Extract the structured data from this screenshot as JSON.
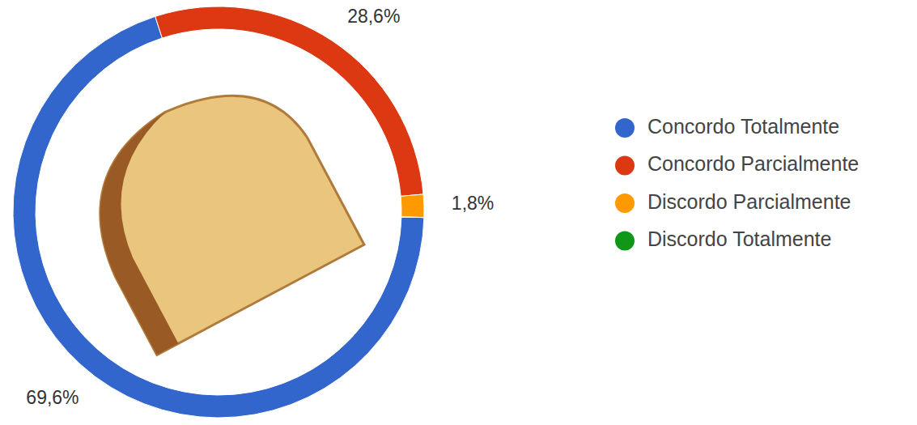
{
  "chart_data": {
    "type": "donut",
    "categories": [
      "Concordo Totalmente",
      "Concordo Parcialmente",
      "Discordo Parcialmente",
      "Discordo Totalmente"
    ],
    "values": [
      69.6,
      28.6,
      1.8,
      0
    ],
    "value_labels": [
      "69,6%",
      "28,6%",
      "1,8%",
      null
    ],
    "colors": [
      "#3366cc",
      "#dc3912",
      "#ff9900",
      "#109618"
    ],
    "data_labels": true,
    "legend": "right"
  }
}
